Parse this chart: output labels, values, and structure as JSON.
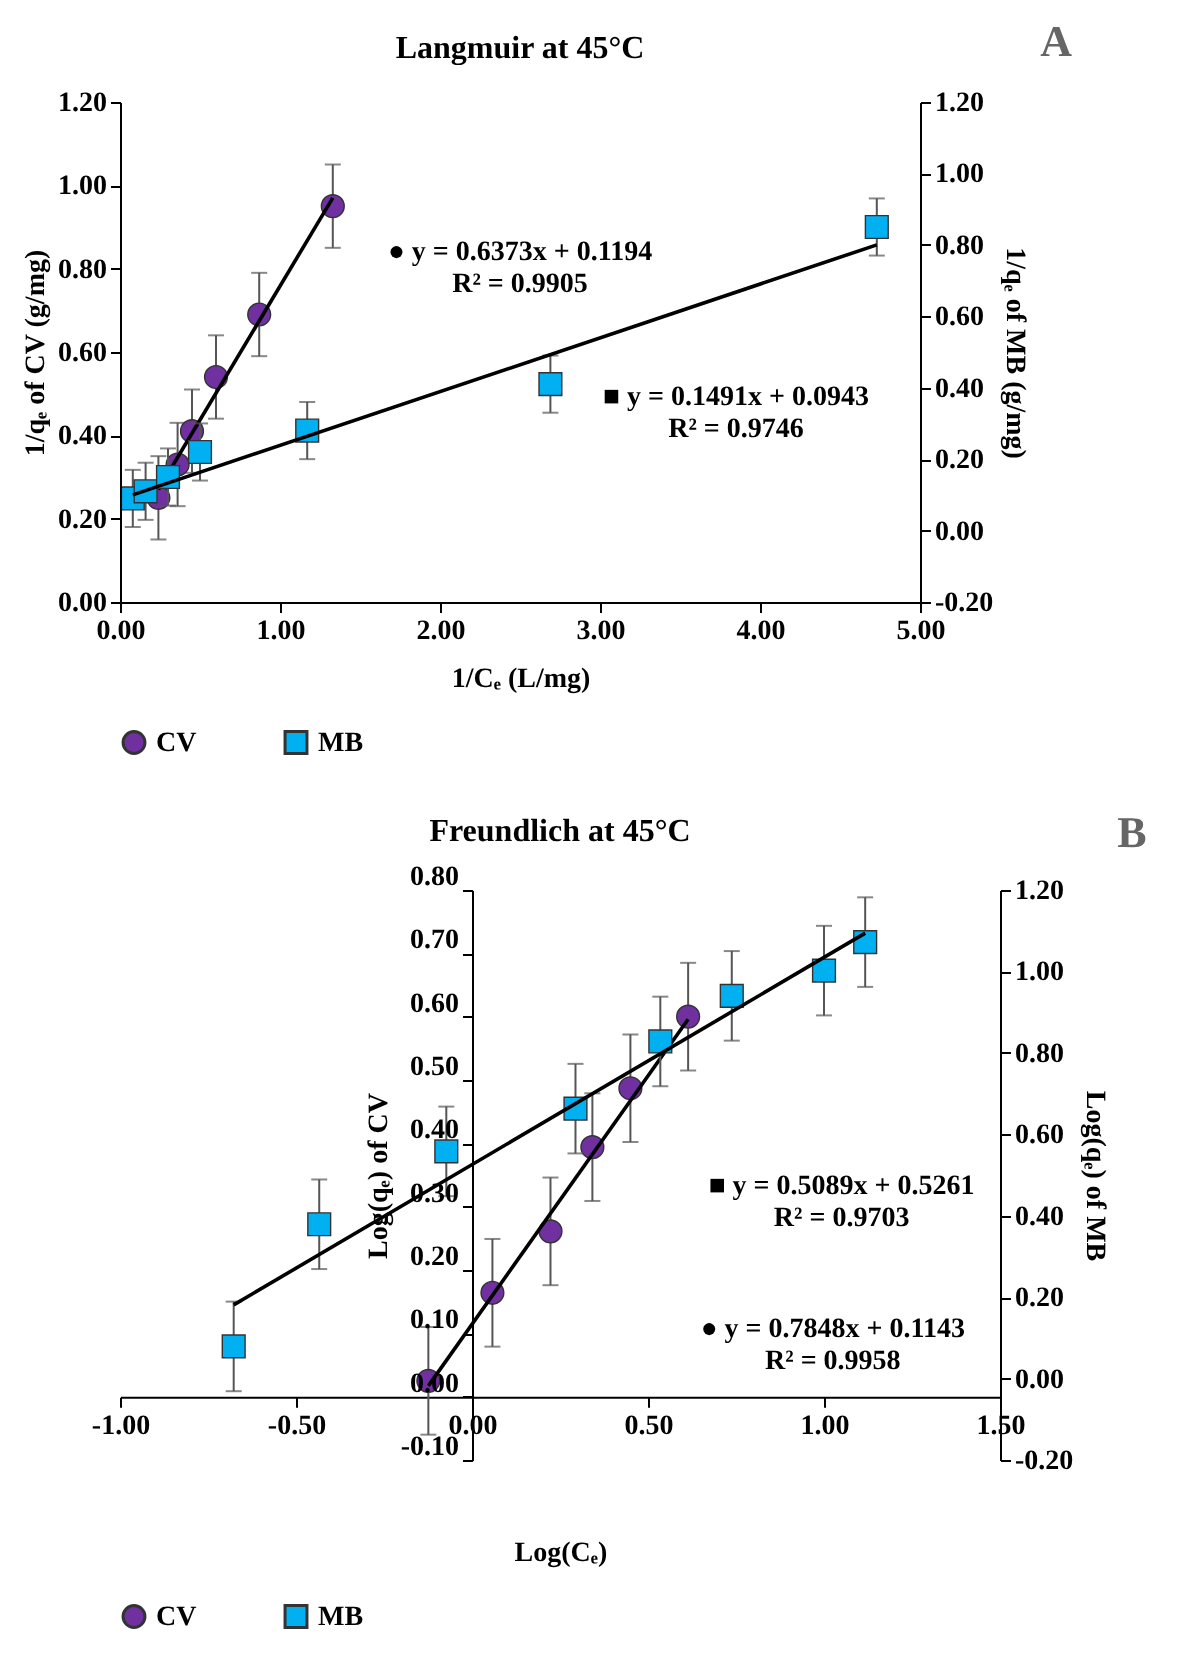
{
  "chart_data": [
    {
      "type": "scatter",
      "title": "Langmuir at 45°C",
      "xlabel": "1/Cₑ (L/mg)",
      "ylabel": "1/qₑ of CV (g/mg)",
      "y2label": "1/qₑ of MB (g/mg)",
      "legend": "bottom",
      "grid": false,
      "xlim": [
        0,
        5
      ],
      "xticks": [
        {
          "value": 0,
          "label": "0.00"
        },
        {
          "value": 1,
          "label": "1.00"
        },
        {
          "value": 2,
          "label": "2.00"
        },
        {
          "value": 3,
          "label": "3.00"
        },
        {
          "value": 4,
          "label": "4.00"
        },
        {
          "value": 5,
          "label": "5.00"
        }
      ],
      "ylim": [
        0,
        1.2
      ],
      "yticks": [
        {
          "value": 0,
          "label": "0.00"
        },
        {
          "value": 0.2,
          "label": "0.20"
        },
        {
          "value": 0.4,
          "label": "0.40"
        },
        {
          "value": 0.6,
          "label": "0.60"
        },
        {
          "value": 0.8,
          "label": "0.80"
        },
        {
          "value": 1,
          "label": "1.00"
        },
        {
          "value": 1.2,
          "label": "1.20"
        }
      ],
      "y2lim": [
        -0.2,
        1.2
      ],
      "y2ticks": [
        {
          "value": -0.2,
          "label": "-0.20"
        },
        {
          "value": 0,
          "label": "0.00"
        },
        {
          "value": 0.2,
          "label": "0.20"
        },
        {
          "value": 0.4,
          "label": "0.40"
        },
        {
          "value": 0.6,
          "label": "0.60"
        },
        {
          "value": 0.8,
          "label": "0.80"
        },
        {
          "value": 1,
          "label": "1.00"
        },
        {
          "value": 1.2,
          "label": "1.20"
        }
      ],
      "series": [
        {
          "name": "CV",
          "type": "scatter",
          "marker": "circle",
          "color": "#7030a0",
          "x": [
            0.24,
            0.36,
            0.45,
            0.6,
            0.87,
            1.33
          ],
          "values": [
            0.25,
            0.33,
            0.41,
            0.54,
            0.69,
            0.95
          ],
          "errors": [
            0.1,
            0.1,
            0.1,
            0.1,
            0.1,
            0.1
          ]
        },
        {
          "name": "MB",
          "type": "scatter",
          "marker": "square",
          "axis": "y2",
          "color": "#00b0f0",
          "x": [
            0.08,
            0.16,
            0.3,
            0.5,
            1.17,
            2.69,
            4.73
          ],
          "values": [
            0.09,
            0.11,
            0.15,
            0.22,
            0.28,
            0.41,
            0.85
          ],
          "errors": [
            0.08,
            0.08,
            0.08,
            0.08,
            0.08,
            0.08,
            0.08
          ]
        },
        {
          "type": "line",
          "marker": "none",
          "line_style": "solid",
          "color": "#000000",
          "x": [
            0.24,
            1.33
          ],
          "values": [
            0.27,
            0.97
          ]
        },
        {
          "type": "line",
          "marker": "none",
          "line_style": "solid",
          "axis": "y2",
          "color": "#000000",
          "x": [
            0.08,
            4.73
          ],
          "values": [
            0.1,
            0.8
          ]
        }
      ],
      "annotations": [
        "A",
        "● y = 0.6373x + 0.1194\nR² = 0.9905",
        "■ y = 0.1491x + 0.0943\nR² = 0.9746"
      ]
    },
    {
      "type": "scatter",
      "title": "Freundlich at 45°C",
      "xlabel": "Log(Cₑ)",
      "ylabel": "Log(qₑ) of CV",
      "y2label": "Log(qₑ) of MB",
      "legend": "bottom",
      "grid": false,
      "xlim": [
        -1,
        1.5
      ],
      "xticks": [
        {
          "value": -1,
          "label": "-1.00"
        },
        {
          "value": -0.5,
          "label": "-0.50"
        },
        {
          "value": 0,
          "label": "0.00"
        },
        {
          "value": 0.5,
          "label": "0.50"
        },
        {
          "value": 1,
          "label": "1.00"
        },
        {
          "value": 1.5,
          "label": "1.50"
        }
      ],
      "ylim": [
        -0.1,
        0.8
      ],
      "yticks": [
        {
          "value": -0.1,
          "label": "-0.10"
        },
        {
          "value": 0,
          "label": "0.00"
        },
        {
          "value": 0.1,
          "label": "0.10"
        },
        {
          "value": 0.2,
          "label": "0.20"
        },
        {
          "value": 0.3,
          "label": "0.30"
        },
        {
          "value": 0.4,
          "label": "0.40"
        },
        {
          "value": 0.5,
          "label": "0.50"
        },
        {
          "value": 0.6,
          "label": "0.60"
        },
        {
          "value": 0.7,
          "label": "0.70"
        },
        {
          "value": 0.8,
          "label": "0.80"
        }
      ],
      "y2lim": [
        -0.2,
        1.2
      ],
      "y2ticks": [
        {
          "value": -0.2,
          "label": "-0.20"
        },
        {
          "value": 0,
          "label": "0.00"
        },
        {
          "value": 0.2,
          "label": "0.20"
        },
        {
          "value": 0.4,
          "label": "0.40"
        },
        {
          "value": 0.6,
          "label": "0.60"
        },
        {
          "value": 0.8,
          "label": "0.80"
        },
        {
          "value": 1,
          "label": "1.00"
        },
        {
          "value": 1.2,
          "label": "1.20"
        }
      ],
      "series": [
        {
          "name": "CV",
          "type": "scatter",
          "marker": "circle",
          "color": "#7030a0",
          "x": [
            -0.124,
            0.058,
            0.223,
            0.342,
            0.45,
            0.614
          ],
          "values": [
            0.025,
            0.164,
            0.261,
            0.394,
            0.487,
            0.6
          ],
          "errors": [
            0.085,
            0.085,
            0.085,
            0.085,
            0.085,
            0.085
          ]
        },
        {
          "name": "MB",
          "type": "scatter",
          "marker": "square",
          "axis": "y2",
          "color": "#00b0f0",
          "x": [
            -0.677,
            -0.434,
            -0.073,
            0.294,
            0.535,
            0.738,
            1.0,
            1.117
          ],
          "values": [
            0.079,
            0.379,
            0.558,
            0.663,
            0.828,
            0.94,
            1.002,
            1.072
          ],
          "errors": [
            0.11,
            0.11,
            0.11,
            0.11,
            0.11,
            0.11,
            0.11,
            0.11
          ]
        },
        {
          "type": "line",
          "marker": "none",
          "line_style": "solid",
          "color": "#000000",
          "x": [
            -0.124,
            0.614
          ],
          "values": [
            0.017,
            0.596
          ]
        },
        {
          "type": "line",
          "marker": "none",
          "line_style": "solid",
          "axis": "y2",
          "color": "#000000",
          "x": [
            -0.677,
            1.117
          ],
          "values": [
            0.181,
            1.094
          ]
        }
      ],
      "annotations": [
        "B",
        "■ y = 0.5089x + 0.5261\nR² = 0.9703",
        "● y = 0.7848x + 0.1143\nR² = 0.9958"
      ]
    }
  ]
}
